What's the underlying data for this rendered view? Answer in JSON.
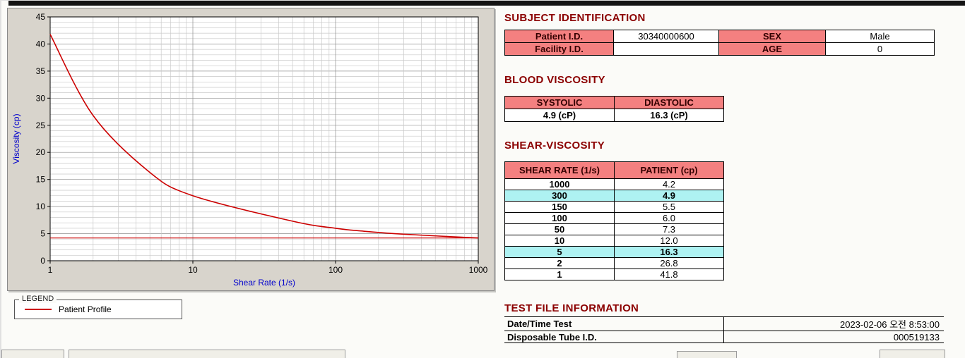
{
  "colors": {
    "header_pink": "#f48080",
    "highlight_cyan": "#aef2f2",
    "heading_maroon": "#8b0000",
    "chart_line_red": "#cc0000",
    "axis_label_blue": "#0000cc",
    "panel_gray": "#d8d4cc"
  },
  "headings": {
    "subject": "SUBJECT IDENTIFICATION",
    "blood": "BLOOD VISCOSITY",
    "shear": "SHEAR-VISCOSITY",
    "test_file": "TEST FILE INFORMATION"
  },
  "subject": {
    "patient_id_label": "Patient I.D.",
    "patient_id_value": "30340000600",
    "sex_label": "SEX",
    "sex_value": "Male",
    "facility_id_label": "Facility I.D.",
    "facility_id_value": "",
    "age_label": "AGE",
    "age_value": "0"
  },
  "blood_viscosity": {
    "systolic_label": "SYSTOLIC",
    "diastolic_label": "DIASTOLIC",
    "systolic_value": "4.9 (cP)",
    "diastolic_value": "16.3 (cP)"
  },
  "shear_viscosity": {
    "col_rate": "SHEAR RATE (1/s)",
    "col_patient": "PATIENT (cp)",
    "rows": [
      {
        "rate": "1000",
        "patient": "4.2",
        "highlight": false
      },
      {
        "rate": "300",
        "patient": "4.9",
        "highlight": true
      },
      {
        "rate": "150",
        "patient": "5.5",
        "highlight": false
      },
      {
        "rate": "100",
        "patient": "6.0",
        "highlight": false
      },
      {
        "rate": "50",
        "patient": "7.3",
        "highlight": false
      },
      {
        "rate": "10",
        "patient": "12.0",
        "highlight": false
      },
      {
        "rate": "5",
        "patient": "16.3",
        "highlight": true
      },
      {
        "rate": "2",
        "patient": "26.8",
        "highlight": false
      },
      {
        "rate": "1",
        "patient": "41.8",
        "highlight": false
      }
    ]
  },
  "test_file": {
    "rows": [
      {
        "label": "Date/Time Test",
        "value": "2023-02-06  오전 8:53:00"
      },
      {
        "label": "Disposable Tube I.D.",
        "value": "000519133"
      }
    ]
  },
  "legend": {
    "box_label": "LEGEND",
    "series_label": "Patient Profile"
  },
  "chart_data": {
    "type": "line",
    "title": "",
    "xlabel": "Shear Rate (1/s)",
    "ylabel": "Viscosity (cp)",
    "x_scale": "log",
    "xlim": [
      1,
      1000
    ],
    "ylim": [
      0,
      45
    ],
    "x_ticks": [
      1,
      10,
      100,
      1000
    ],
    "y_ticks": [
      0,
      5,
      10,
      15,
      20,
      25,
      30,
      35,
      40,
      45
    ],
    "grid": true,
    "legend_position": "below-left",
    "x": [
      1,
      2,
      5,
      10,
      50,
      100,
      150,
      300,
      1000
    ],
    "series": [
      {
        "name": "Patient Profile",
        "color": "#cc0000",
        "values": [
          41.8,
          26.8,
          16.3,
          12.0,
          7.3,
          6.0,
          5.5,
          4.9,
          4.2
        ]
      }
    ],
    "baseline": {
      "value": 4.2,
      "color": "#cc0000"
    }
  }
}
